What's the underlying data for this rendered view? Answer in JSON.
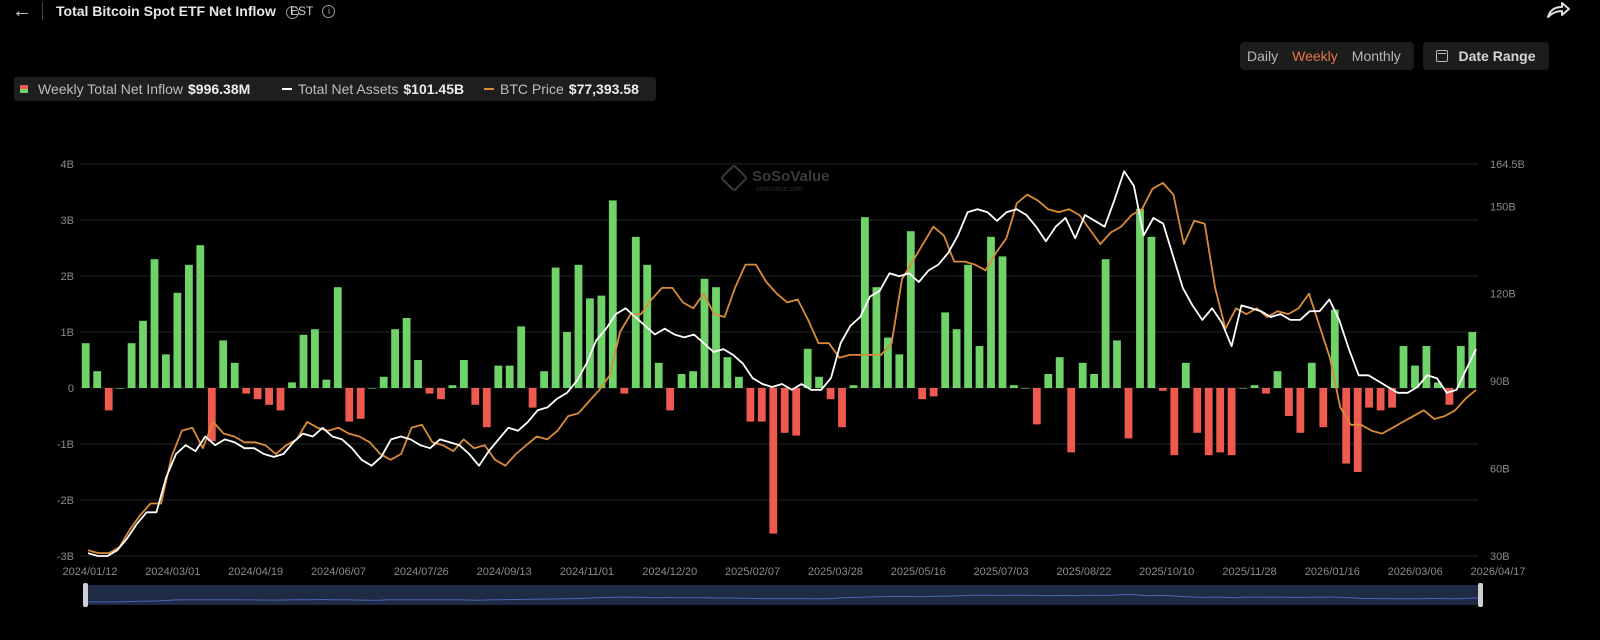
{
  "header": {
    "back_label": "←",
    "title": "Total Bitcoin Spot ETF Net Inflow",
    "info_glyph": "i",
    "timezone": "EST"
  },
  "periods": [
    {
      "label": "Daily",
      "active": false
    },
    {
      "label": "Weekly",
      "active": true
    },
    {
      "label": "Monthly",
      "active": false
    }
  ],
  "date_range_label": "Date Range",
  "legend": [
    {
      "label": "Weekly Total Net Inflow",
      "value": "$996.38M",
      "swatch": "bicolor"
    },
    {
      "label": "Total Net Assets",
      "value": "$101.45B",
      "color": "#ffffff"
    },
    {
      "label": "BTC Price",
      "value": "$77,393.58",
      "color": "#d98b3a"
    }
  ],
  "watermark": {
    "name": "SoSoValue",
    "sub": "sosovalue.com"
  },
  "colors": {
    "positive": "#6fd36a",
    "negative": "#ef5a50",
    "assets": "#ffffff",
    "price": "#d98b3a",
    "grid": "#262626",
    "axis_text": "#8a8a8a"
  },
  "chart_data": {
    "type": "bar",
    "x_tick_labels": [
      "2024/01/12",
      "2024/03/01",
      "2024/04/19",
      "2024/06/07",
      "2024/07/26",
      "2024/09/13",
      "2024/11/01",
      "2024/12/20",
      "2025/02/07",
      "2025/03/28",
      "2025/05/16",
      "2025/07/03",
      "2025/08/22",
      "2025/10/10",
      "2025/11/28",
      "2026/01/16",
      "2026/03/06",
      "2026/04/17"
    ],
    "y_left": {
      "ticks": [
        "4B",
        "3B",
        "2B",
        "1B",
        "0",
        "-1B",
        "-2B",
        "-3B"
      ],
      "tick_values": [
        4,
        3,
        2,
        1,
        0,
        -1,
        -2,
        -3
      ],
      "range": [
        -3,
        4
      ],
      "unit": "B"
    },
    "y_right": {
      "ticks": [
        "164.5B",
        "150B",
        "120B",
        "90B",
        "60B",
        "30B"
      ],
      "tick_values": [
        164.5,
        150,
        120,
        90,
        60,
        30
      ],
      "range": [
        30,
        164.5
      ],
      "unit": "B"
    },
    "grid": true,
    "series": [
      {
        "name": "Weekly Total Net Inflow",
        "type": "bar",
        "axis": "left",
        "values": [
          0.8,
          0.3,
          -0.4,
          0,
          0.8,
          1.2,
          2.3,
          0.6,
          1.7,
          2.2,
          2.55,
          -0.95,
          0.85,
          0.45,
          -0.1,
          -0.2,
          -0.3,
          -0.4,
          0.1,
          0.95,
          1.05,
          0.15,
          1.8,
          -0.6,
          -0.55,
          0,
          0.2,
          1.05,
          1.25,
          0.5,
          -0.1,
          -0.2,
          0.05,
          0.5,
          -0.3,
          -0.7,
          0.4,
          0.4,
          1.1,
          -0.35,
          0.3,
          2.15,
          1.0,
          2.2,
          1.6,
          1.65,
          3.35,
          -0.1,
          2.7,
          2.2,
          0.45,
          -0.4,
          0.25,
          0.3,
          1.95,
          1.8,
          0.55,
          0.2,
          -0.6,
          -0.6,
          -2.6,
          -0.8,
          -0.85,
          0.7,
          0.2,
          -0.2,
          -0.7,
          0.05,
          3.05,
          1.8,
          0.9,
          0.6,
          2.8,
          -0.2,
          -0.15,
          1.35,
          1.05,
          2.2,
          0.75,
          2.7,
          2.35,
          0.05,
          0,
          -0.65,
          0.25,
          0.55,
          -1.15,
          0.45,
          0.25,
          2.3,
          0.85,
          -0.9,
          3.2,
          2.7,
          -0.05,
          -1.2,
          0.45,
          -0.8,
          -1.2,
          -1.15,
          -1.2,
          0,
          0.05,
          -0.1,
          0.3,
          -0.5,
          -0.8,
          0.45,
          -0.7,
          1.4,
          -1.35,
          -1.5,
          -0.35,
          -0.4,
          -0.35,
          0.75,
          0.4,
          0.75,
          0.1,
          -0.3,
          0.75,
          1.0
        ]
      },
      {
        "name": "Total Net Assets",
        "type": "line",
        "axis": "right",
        "color": "#ffffff",
        "values": [
          31,
          30,
          30,
          32,
          36,
          41,
          45,
          45,
          57,
          65,
          68,
          66,
          71,
          68,
          70,
          69,
          67,
          67,
          65,
          64,
          65,
          69,
          72,
          71,
          74,
          71,
          70,
          67,
          63,
          61,
          64,
          70,
          71,
          70,
          68,
          67,
          70,
          69,
          68,
          65,
          61,
          66,
          70,
          74,
          73,
          76,
          80,
          81,
          84,
          86,
          90,
          96,
          104,
          108,
          113,
          115,
          112,
          109,
          106,
          108,
          106,
          105,
          106,
          103,
          100,
          101,
          99,
          96,
          91,
          89,
          88,
          89,
          87,
          89,
          87,
          87,
          91,
          103,
          109,
          112,
          119,
          121,
          127,
          126,
          127,
          124,
          128,
          130,
          134,
          140,
          148,
          149,
          148,
          145,
          148,
          149,
          147,
          143,
          138,
          143,
          146,
          139,
          147,
          145,
          143,
          152,
          162,
          157,
          140,
          146,
          144,
          133,
          122,
          116,
          111,
          115,
          110,
          102,
          116,
          115,
          114,
          112,
          113,
          111,
          111,
          114,
          114,
          118,
          111,
          101,
          92,
          92,
          90,
          88,
          86,
          86,
          88,
          92,
          91,
          86,
          87,
          94,
          101
        ]
      },
      {
        "name": "BTC Price",
        "type": "line",
        "axis": "right",
        "color": "#d98b3a",
        "values": [
          32,
          31,
          31,
          33,
          39,
          44,
          48,
          48,
          64,
          73,
          74,
          67,
          76,
          72,
          71,
          69,
          69,
          68,
          65,
          68,
          70,
          76,
          74,
          73,
          74,
          72,
          71,
          69,
          65,
          63,
          65,
          74,
          75,
          69,
          68,
          66,
          70,
          67,
          68,
          63,
          61,
          65,
          68,
          71,
          70,
          73,
          78,
          79,
          83,
          87,
          92,
          107,
          113,
          113,
          118,
          122,
          122,
          117,
          115,
          120,
          113,
          112,
          122,
          130,
          130,
          124,
          120,
          117,
          118,
          111,
          103,
          103,
          98,
          99,
          99,
          99,
          99,
          103,
          125,
          131,
          137,
          143,
          140,
          131,
          131,
          130,
          128,
          134,
          139,
          151,
          154,
          152,
          149,
          148,
          149,
          147,
          142,
          137,
          141,
          143,
          147,
          149,
          156,
          158,
          154,
          137,
          145,
          144,
          122,
          108,
          115,
          113,
          115,
          112,
          114,
          113,
          115,
          120,
          109,
          98,
          81,
          75,
          75,
          73,
          72,
          74,
          76,
          78,
          80,
          77,
          78,
          80,
          84,
          87
        ]
      }
    ]
  }
}
